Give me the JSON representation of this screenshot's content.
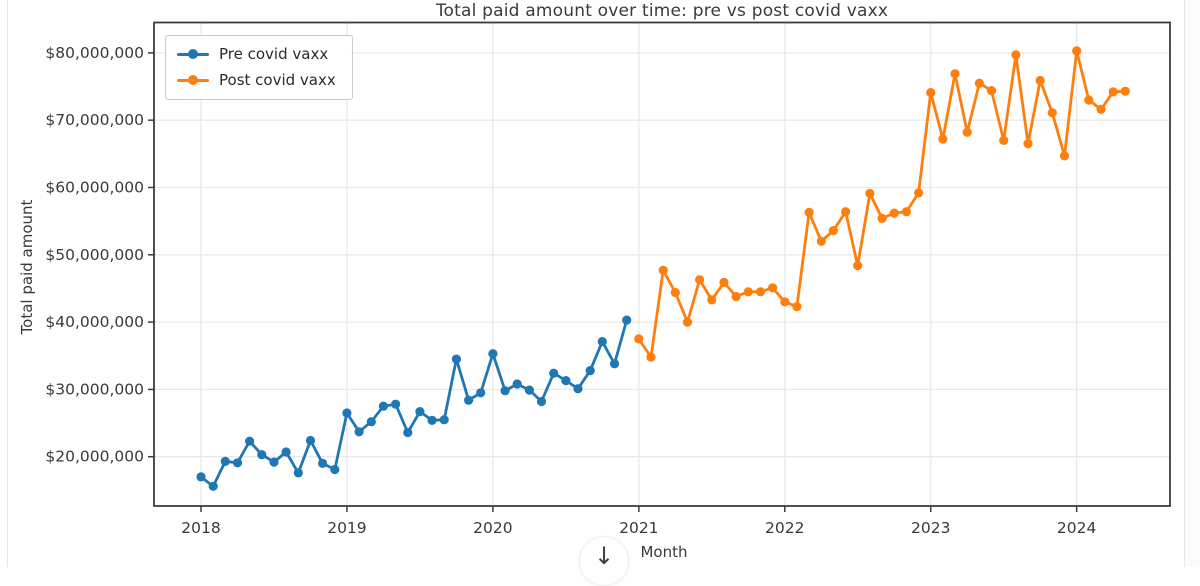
{
  "chart_data": {
    "type": "line",
    "title": "Total paid amount over time: pre vs post covid vaxx",
    "xlabel": "Month",
    "ylabel": "Total paid amount",
    "unit": "USD (values stored in millions)",
    "grid": true,
    "legend_position": "upper left",
    "x_tick_labels": [
      "2018",
      "2019",
      "2020",
      "2021",
      "2022",
      "2023",
      "2024"
    ],
    "y_tick_labels": [
      "$20,000,000",
      "$30,000,000",
      "$40,000,000",
      "$50,000,000",
      "$60,000,000",
      "$70,000,000",
      "$80,000,000"
    ],
    "y_tick_values_musd": [
      20,
      30,
      40,
      50,
      60,
      70,
      80
    ],
    "ylim_musd": [
      12.7,
      84.5
    ],
    "xlim_months": [
      "2017-09",
      "2024-08"
    ],
    "series": [
      {
        "name": "Pre covid vaxx",
        "color": "#1f77b4",
        "start_month": "2018-01",
        "values_musd": [
          17.0,
          15.6,
          19.3,
          19.1,
          22.3,
          20.3,
          19.2,
          20.7,
          17.6,
          22.4,
          19.0,
          18.1,
          26.5,
          23.7,
          25.2,
          27.5,
          27.8,
          23.6,
          26.7,
          25.4,
          25.5,
          34.5,
          28.4,
          29.5,
          35.3,
          29.8,
          30.8,
          29.9,
          28.2,
          32.4,
          31.3,
          30.1,
          32.8,
          37.1,
          33.8,
          40.3
        ]
      },
      {
        "name": "Post covid vaxx",
        "color": "#ff7f0e",
        "start_month": "2021-01",
        "values_musd": [
          37.5,
          34.8,
          47.7,
          44.4,
          40.0,
          46.3,
          43.3,
          45.9,
          43.8,
          44.5,
          44.5,
          45.1,
          43.0,
          42.3,
          56.3,
          52.0,
          53.6,
          56.4,
          48.4,
          59.1,
          55.4,
          56.2,
          56.4,
          59.2,
          74.1,
          67.2,
          76.9,
          68.2,
          75.5,
          74.4,
          67.0,
          79.7,
          66.5,
          75.9,
          71.1,
          64.7,
          80.3,
          73.0,
          71.6,
          74.2,
          74.3
        ]
      }
    ]
  },
  "overlay": {
    "scroll_button_glyph": "↓"
  }
}
